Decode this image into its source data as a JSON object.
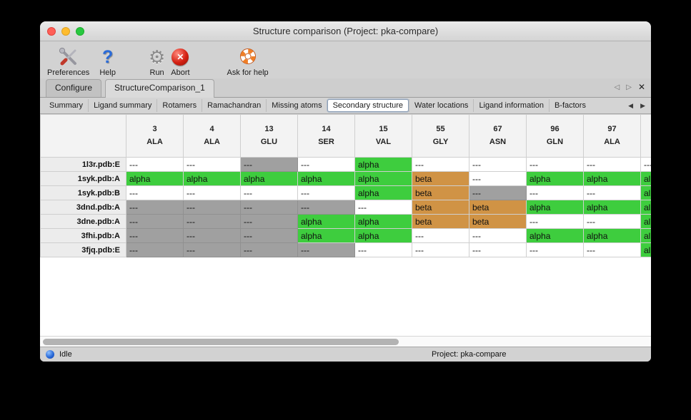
{
  "window": {
    "title": "Structure comparison (Project: pka-compare)"
  },
  "toolbar": {
    "preferences": "Preferences",
    "help": "Help",
    "run": "Run",
    "abort": "Abort",
    "ask_for_help": "Ask for help"
  },
  "icons": {
    "prev_outline": "◁",
    "next_outline": "▷",
    "prev": "◀",
    "next": "▶",
    "close": "✕",
    "gear": "⚙",
    "help_mark": "?",
    "abort_x": "✕"
  },
  "document_tabs": {
    "items": [
      {
        "label": "Configure",
        "active": false
      },
      {
        "label": "StructureComparison_1",
        "active": true
      }
    ]
  },
  "view_tabs": {
    "items": [
      {
        "label": "Summary",
        "selected": false
      },
      {
        "label": "Ligand summary",
        "selected": false
      },
      {
        "label": "Rotamers",
        "selected": false
      },
      {
        "label": "Ramachandran",
        "selected": false
      },
      {
        "label": "Missing atoms",
        "selected": false
      },
      {
        "label": "Secondary structure",
        "selected": true
      },
      {
        "label": "Water locations",
        "selected": false
      },
      {
        "label": "Ligand information",
        "selected": false
      },
      {
        "label": "B-factors",
        "selected": false
      }
    ]
  },
  "table": {
    "columns": [
      {
        "number": "3",
        "residue": "ALA"
      },
      {
        "number": "4",
        "residue": "ALA"
      },
      {
        "number": "13",
        "residue": "GLU"
      },
      {
        "number": "14",
        "residue": "SER"
      },
      {
        "number": "15",
        "residue": "VAL"
      },
      {
        "number": "55",
        "residue": "GLY"
      },
      {
        "number": "67",
        "residue": "ASN"
      },
      {
        "number": "96",
        "residue": "GLN"
      },
      {
        "number": "97",
        "residue": "ALA"
      },
      {
        "number": "",
        "residue": ""
      }
    ],
    "rows": [
      {
        "label": "1l3r.pdb:E",
        "cells": [
          {
            "text": "---",
            "type": "plain"
          },
          {
            "text": "---",
            "type": "plain"
          },
          {
            "text": "---",
            "type": "missing"
          },
          {
            "text": "---",
            "type": "plain"
          },
          {
            "text": "alpha",
            "type": "alpha"
          },
          {
            "text": "---",
            "type": "plain"
          },
          {
            "text": "---",
            "type": "plain"
          },
          {
            "text": "---",
            "type": "plain"
          },
          {
            "text": "---",
            "type": "plain"
          },
          {
            "text": "---",
            "type": "plain"
          }
        ]
      },
      {
        "label": "1syk.pdb:A",
        "cells": [
          {
            "text": "alpha",
            "type": "alpha"
          },
          {
            "text": "alpha",
            "type": "alpha"
          },
          {
            "text": "alpha",
            "type": "alpha"
          },
          {
            "text": "alpha",
            "type": "alpha"
          },
          {
            "text": "alpha",
            "type": "alpha"
          },
          {
            "text": "beta",
            "type": "beta"
          },
          {
            "text": "---",
            "type": "plain"
          },
          {
            "text": "alpha",
            "type": "alpha"
          },
          {
            "text": "alpha",
            "type": "alpha"
          },
          {
            "text": "alpha",
            "type": "alpha"
          }
        ]
      },
      {
        "label": "1syk.pdb:B",
        "cells": [
          {
            "text": "---",
            "type": "plain"
          },
          {
            "text": "---",
            "type": "plain"
          },
          {
            "text": "---",
            "type": "plain"
          },
          {
            "text": "---",
            "type": "plain"
          },
          {
            "text": "alpha",
            "type": "alpha"
          },
          {
            "text": "beta",
            "type": "beta"
          },
          {
            "text": "---",
            "type": "missing"
          },
          {
            "text": "---",
            "type": "plain"
          },
          {
            "text": "---",
            "type": "plain"
          },
          {
            "text": "alpha",
            "type": "alpha"
          }
        ]
      },
      {
        "label": "3dnd.pdb:A",
        "cells": [
          {
            "text": "---",
            "type": "missing"
          },
          {
            "text": "---",
            "type": "missing"
          },
          {
            "text": "---",
            "type": "missing"
          },
          {
            "text": "---",
            "type": "missing"
          },
          {
            "text": "---",
            "type": "plain"
          },
          {
            "text": "beta",
            "type": "beta"
          },
          {
            "text": "beta",
            "type": "beta"
          },
          {
            "text": "alpha",
            "type": "alpha"
          },
          {
            "text": "alpha",
            "type": "alpha"
          },
          {
            "text": "alpha",
            "type": "alpha"
          }
        ]
      },
      {
        "label": "3dne.pdb:A",
        "cells": [
          {
            "text": "---",
            "type": "missing"
          },
          {
            "text": "---",
            "type": "missing"
          },
          {
            "text": "---",
            "type": "missing"
          },
          {
            "text": "alpha",
            "type": "alpha"
          },
          {
            "text": "alpha",
            "type": "alpha"
          },
          {
            "text": "beta",
            "type": "beta"
          },
          {
            "text": "beta",
            "type": "beta"
          },
          {
            "text": "---",
            "type": "plain"
          },
          {
            "text": "---",
            "type": "plain"
          },
          {
            "text": "alpha",
            "type": "alpha"
          }
        ]
      },
      {
        "label": "3fhi.pdb:A",
        "cells": [
          {
            "text": "---",
            "type": "missing"
          },
          {
            "text": "---",
            "type": "missing"
          },
          {
            "text": "---",
            "type": "missing"
          },
          {
            "text": "alpha",
            "type": "alpha"
          },
          {
            "text": "alpha",
            "type": "alpha"
          },
          {
            "text": "---",
            "type": "plain"
          },
          {
            "text": "---",
            "type": "plain"
          },
          {
            "text": "alpha",
            "type": "alpha"
          },
          {
            "text": "alpha",
            "type": "alpha"
          },
          {
            "text": "alpha",
            "type": "alpha"
          }
        ]
      },
      {
        "label": "3fjq.pdb:E",
        "cells": [
          {
            "text": "---",
            "type": "missing"
          },
          {
            "text": "---",
            "type": "missing"
          },
          {
            "text": "---",
            "type": "missing"
          },
          {
            "text": "---",
            "type": "missing"
          },
          {
            "text": "---",
            "type": "plain"
          },
          {
            "text": "---",
            "type": "plain"
          },
          {
            "text": "---",
            "type": "plain"
          },
          {
            "text": "---",
            "type": "plain"
          },
          {
            "text": "---",
            "type": "plain"
          },
          {
            "text": "alpha",
            "type": "alpha"
          }
        ]
      }
    ]
  },
  "status_bar": {
    "status": "Idle",
    "project": "Project: pka-compare"
  },
  "colors": {
    "plain": "#ffffff",
    "alpha": "#3ecd3e",
    "beta": "#d09345",
    "missing": "#a0a0a0"
  }
}
